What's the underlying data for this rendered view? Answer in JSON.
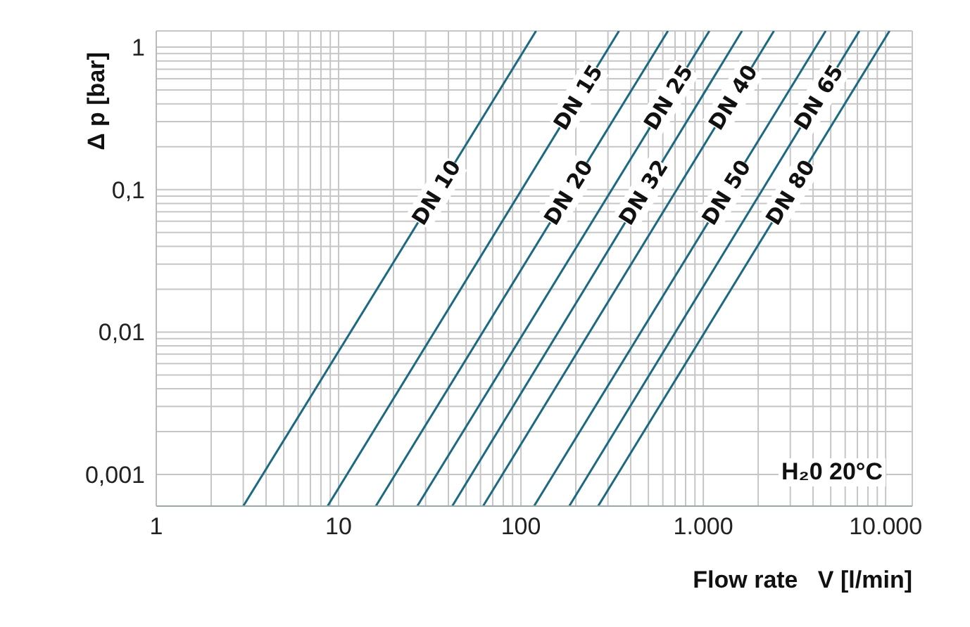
{
  "chart_data": {
    "type": "line",
    "xlabel": "Flow rate   V [l/min]",
    "ylabel": "Δ p [bar]",
    "log": "xy",
    "grid": true,
    "legend": false,
    "marker": "none",
    "line_style": "solid",
    "xlim": [
      1,
      14000
    ],
    "ylim": [
      0.0006,
      1.3
    ],
    "xticks": [
      1,
      {
        "value": 2,
        "label": null
      },
      {
        "value": 3,
        "label": null
      },
      {
        "value": 4,
        "label": null
      },
      {
        "value": 5,
        "label": null
      },
      {
        "value": 6,
        "label": null
      },
      {
        "value": 7,
        "label": null
      },
      {
        "value": 8,
        "label": null
      },
      {
        "value": 9,
        "label": null
      },
      10,
      {
        "value": 20,
        "label": null
      },
      {
        "value": 30,
        "label": null
      },
      {
        "value": 40,
        "label": null
      },
      {
        "value": 50,
        "label": null
      },
      {
        "value": 60,
        "label": null
      },
      {
        "value": 70,
        "label": null
      },
      {
        "value": 80,
        "label": null
      },
      {
        "value": 90,
        "label": null
      },
      100,
      {
        "value": 200,
        "label": null
      },
      {
        "value": 300,
        "label": null
      },
      {
        "value": 400,
        "label": null
      },
      {
        "value": 500,
        "label": null
      },
      {
        "value": 600,
        "label": null
      },
      {
        "value": 700,
        "label": null
      },
      {
        "value": 800,
        "label": null
      },
      {
        "value": 900,
        "label": null
      },
      {
        "value": 1000,
        "label": "1.000"
      },
      {
        "value": 2000,
        "label": null
      },
      {
        "value": 3000,
        "label": null
      },
      {
        "value": 4000,
        "label": null
      },
      {
        "value": 5000,
        "label": null
      },
      {
        "value": 6000,
        "label": null
      },
      {
        "value": 7000,
        "label": null
      },
      {
        "value": 8000,
        "label": null
      },
      {
        "value": 9000,
        "label": null
      },
      {
        "value": 10000,
        "label": "10.000"
      }
    ],
    "yticks": [
      {
        "value": 0.001,
        "label": "0,001"
      },
      {
        "value": 0.002,
        "label": null
      },
      {
        "value": 0.003,
        "label": null
      },
      {
        "value": 0.004,
        "label": null
      },
      {
        "value": 0.005,
        "label": null
      },
      {
        "value": 0.006,
        "label": null
      },
      {
        "value": 0.007,
        "label": null
      },
      {
        "value": 0.008,
        "label": null
      },
      {
        "value": 0.009,
        "label": null
      },
      {
        "value": 0.01,
        "label": "0,01"
      },
      {
        "value": 0.02,
        "label": null
      },
      {
        "value": 0.03,
        "label": null
      },
      {
        "value": 0.04,
        "label": null
      },
      {
        "value": 0.05,
        "label": null
      },
      {
        "value": 0.06,
        "label": null
      },
      {
        "value": 0.07,
        "label": null
      },
      {
        "value": 0.08,
        "label": null
      },
      {
        "value": 0.09,
        "label": null
      },
      {
        "value": 0.1,
        "label": "0,1"
      },
      {
        "value": 0.2,
        "label": null
      },
      {
        "value": 0.3,
        "label": null
      },
      {
        "value": 0.4,
        "label": null
      },
      {
        "value": 0.5,
        "label": null
      },
      {
        "value": 0.6,
        "label": null
      },
      {
        "value": 0.7,
        "label": null
      },
      {
        "value": 0.8,
        "label": null
      },
      {
        "value": 0.9,
        "label": null
      },
      1
    ],
    "annotations": [
      "H₂0 20°C"
    ],
    "series": [
      {
        "name": "DN 10",
        "color": "#1b6a82",
        "x": [
          3.0,
          121
        ],
        "values": [
          0.0006,
          1.3
        ]
      },
      {
        "name": "DN 15",
        "color": "#1b6a82",
        "x": [
          8.7,
          345
        ],
        "values": [
          0.0006,
          1.3
        ]
      },
      {
        "name": "DN 20",
        "color": "#1b6a82",
        "x": [
          16,
          640
        ],
        "values": [
          0.0006,
          1.3
        ]
      },
      {
        "name": "DN 25",
        "color": "#1b6a82",
        "x": [
          27,
          1080
        ],
        "values": [
          0.0006,
          1.3
        ]
      },
      {
        "name": "DN 32",
        "color": "#1b6a82",
        "x": [
          42,
          1630
        ],
        "values": [
          0.0006,
          1.3
        ]
      },
      {
        "name": "DN 40",
        "color": "#1b6a82",
        "x": [
          62,
          2440
        ],
        "values": [
          0.0006,
          1.3
        ]
      },
      {
        "name": "DN 50",
        "color": "#1b6a82",
        "x": [
          118,
          4690
        ],
        "values": [
          0.0006,
          1.3
        ]
      },
      {
        "name": "DN 65",
        "color": "#1b6a82",
        "x": [
          184,
          7180
        ],
        "values": [
          0.0006,
          1.3
        ]
      },
      {
        "name": "DN 80",
        "color": "#1b6a82",
        "x": [
          265,
          10500
        ],
        "values": [
          0.0006,
          1.3
        ]
      }
    ]
  }
}
